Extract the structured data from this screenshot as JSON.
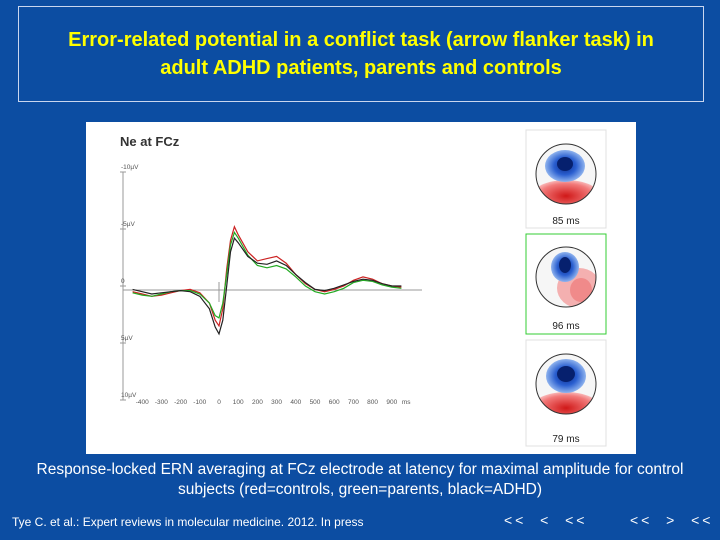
{
  "slide": {
    "title": "Error-related potential in a conflict task (arrow flanker task) in adult ADHD patients, parents and controls",
    "caption": "Response-locked ERN averaging at FCz electrode at latency for maximal amplitude for control subjects (red=controls, green=parents, black=ADHD)",
    "citation": "Tye C. et al.: Expert reviews in molecular medicine. 2012. In press",
    "nav_left": "<<  <  <<",
    "nav_right": "<<  >  <<"
  },
  "colors": {
    "background": "#0c4da2",
    "title": "#ffff00",
    "controls": "#cc2222",
    "parents": "#22aa22",
    "adhd": "#222222"
  },
  "chart_data": {
    "type": "line",
    "title": "Ne at FCz",
    "x_unit": "ms",
    "y_unit": "µV",
    "xlim": [
      -500,
      1000
    ],
    "ylim": [
      -10,
      10
    ],
    "y_axis_inverted": true,
    "x_tick_labels": [
      "-400",
      "-300",
      "-200",
      "-100",
      "0",
      "100",
      "200",
      "300",
      "400",
      "500",
      "600",
      "700",
      "800",
      "900",
      "ms"
    ],
    "x_tick_values": [
      -400,
      -300,
      -200,
      -100,
      0,
      100,
      200,
      300,
      400,
      500,
      600,
      700,
      800,
      900
    ],
    "y_tick_labels": [
      "-10µV",
      "-5µV",
      "0",
      "5µV",
      "10µV"
    ],
    "y_tick_values": [
      -10,
      -5,
      0,
      5,
      10
    ],
    "series": [
      {
        "color": "#cc2222",
        "x": [
          -450,
          -400,
          -350,
          -300,
          -250,
          -200,
          -150,
          -100,
          -50,
          -20,
          0,
          20,
          40,
          60,
          80,
          100,
          150,
          200,
          250,
          300,
          350,
          400,
          450,
          500,
          550,
          600,
          650,
          700,
          750,
          800,
          850,
          900,
          950
        ],
        "y": [
          0.5,
          0.7,
          0.9,
          0.8,
          0.6,
          0.4,
          0.3,
          0.6,
          1.5,
          3.0,
          3.5,
          2.0,
          -1.5,
          -4.0,
          -5.2,
          -4.5,
          -3.0,
          -2.2,
          -2.4,
          -2.6,
          -2.0,
          -1.0,
          -0.2,
          0.3,
          0.5,
          0.3,
          0.0,
          -0.5,
          -0.8,
          -0.6,
          -0.2,
          0.0,
          0.1
        ]
      },
      {
        "color": "#22aa22",
        "x": [
          -450,
          -400,
          -350,
          -300,
          -250,
          -200,
          -150,
          -100,
          -50,
          -20,
          0,
          20,
          40,
          60,
          80,
          100,
          150,
          200,
          250,
          300,
          350,
          400,
          450,
          500,
          550,
          600,
          650,
          700,
          750,
          800,
          850,
          900,
          950
        ],
        "y": [
          0.6,
          0.8,
          0.9,
          0.7,
          0.5,
          0.4,
          0.4,
          0.7,
          1.5,
          2.6,
          2.8,
          1.5,
          -1.0,
          -3.6,
          -4.7,
          -4.2,
          -2.7,
          -1.8,
          -1.6,
          -1.8,
          -1.5,
          -0.8,
          0.0,
          0.5,
          0.7,
          0.5,
          0.2,
          -0.3,
          -0.5,
          -0.4,
          -0.1,
          0.1,
          0.2
        ]
      },
      {
        "color": "#222222",
        "x": [
          -450,
          -400,
          -350,
          -300,
          -250,
          -200,
          -150,
          -100,
          -50,
          -20,
          0,
          20,
          40,
          60,
          80,
          100,
          150,
          200,
          250,
          300,
          350,
          400,
          450,
          500,
          550,
          600,
          650,
          700,
          750,
          800,
          850,
          900,
          950
        ],
        "y": [
          0.3,
          0.5,
          0.7,
          0.6,
          0.5,
          0.4,
          0.5,
          0.9,
          2.0,
          3.6,
          4.2,
          3.0,
          0.0,
          -3.0,
          -4.2,
          -3.8,
          -2.6,
          -2.0,
          -1.9,
          -2.2,
          -1.8,
          -1.0,
          -0.3,
          0.3,
          0.4,
          0.2,
          -0.1,
          -0.4,
          -0.6,
          -0.5,
          -0.2,
          0.0,
          0.0
        ]
      }
    ]
  },
  "topomaps": [
    {
      "latency_label": "85 ms",
      "border_color": "#e0e0e0"
    },
    {
      "latency_label": "96 ms",
      "border_color": "#33cc33"
    },
    {
      "latency_label": "79 ms",
      "border_color": "#e0e0e0"
    }
  ]
}
